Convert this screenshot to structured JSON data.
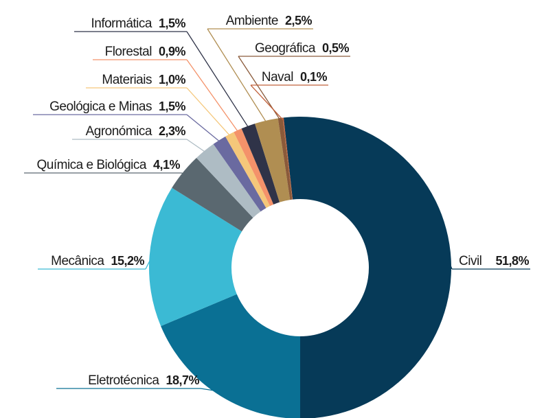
{
  "chart_data": {
    "type": "donut",
    "categories": [
      "Civil",
      "Eletrotécnica",
      "Mecânica",
      "Química e Biológica",
      "Agronómica",
      "Geológica e Minas",
      "Materiais",
      "Florestal",
      "Informática",
      "Ambiente",
      "Geográfica",
      "Naval"
    ],
    "values": [
      51.8,
      18.7,
      15.2,
      4.1,
      2.3,
      1.5,
      1.0,
      0.9,
      1.5,
      2.5,
      0.5,
      0.1
    ],
    "value_labels": [
      "51,8%",
      "18,7%",
      "15,2%",
      "4,1%",
      "2,3%",
      "1,5%",
      "1,0%",
      "0,9%",
      "1,5%",
      "2,5%",
      "0,5%",
      "0,1%"
    ],
    "colors": [
      "#063a58",
      "#0a7094",
      "#3bbad4",
      "#5a6870",
      "#aebcc4",
      "#6a6aa0",
      "#f5c77a",
      "#f4926a",
      "#2f3348",
      "#b08e52",
      "#8a5a3a",
      "#c0603a"
    ]
  }
}
